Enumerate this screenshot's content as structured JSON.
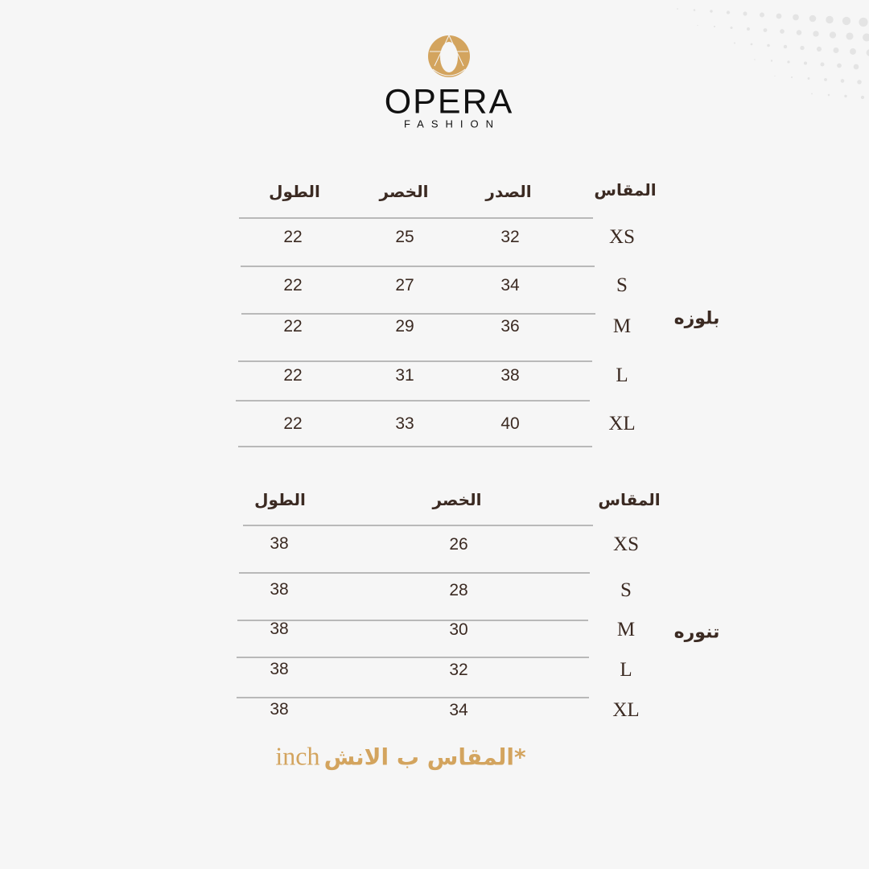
{
  "brand": {
    "name": "OPERA",
    "tagline": "FASHION",
    "accent": "#d3a45e"
  },
  "blouse": {
    "label": "بلوزه",
    "headers": {
      "size": "المقاس",
      "chest": "الصدر",
      "waist": "الخصر",
      "length": "الطول"
    },
    "rows": [
      {
        "size": "XS",
        "chest": "32",
        "waist": "25",
        "length": "22"
      },
      {
        "size": "S",
        "chest": "34",
        "waist": "27",
        "length": "22"
      },
      {
        "size": "M",
        "chest": "36",
        "waist": "29",
        "length": "22"
      },
      {
        "size": "L",
        "chest": "38",
        "waist": "31",
        "length": "22"
      },
      {
        "size": "XL",
        "chest": "40",
        "waist": "33",
        "length": "22"
      }
    ]
  },
  "skirt": {
    "label": "تنوره",
    "headers": {
      "size": "المقاس",
      "waist": "الخصر",
      "length": "الطول"
    },
    "rows": [
      {
        "size": "XS",
        "waist": "26",
        "length": "38"
      },
      {
        "size": "S",
        "waist": "28",
        "length": "38"
      },
      {
        "size": "M",
        "waist": "30",
        "length": "38"
      },
      {
        "size": "L",
        "waist": "32",
        "length": "38"
      },
      {
        "size": "XL",
        "waist": "34",
        "length": "38"
      }
    ]
  },
  "note": {
    "arabic": "*المقاس ب الانش",
    "unit": "inch"
  }
}
